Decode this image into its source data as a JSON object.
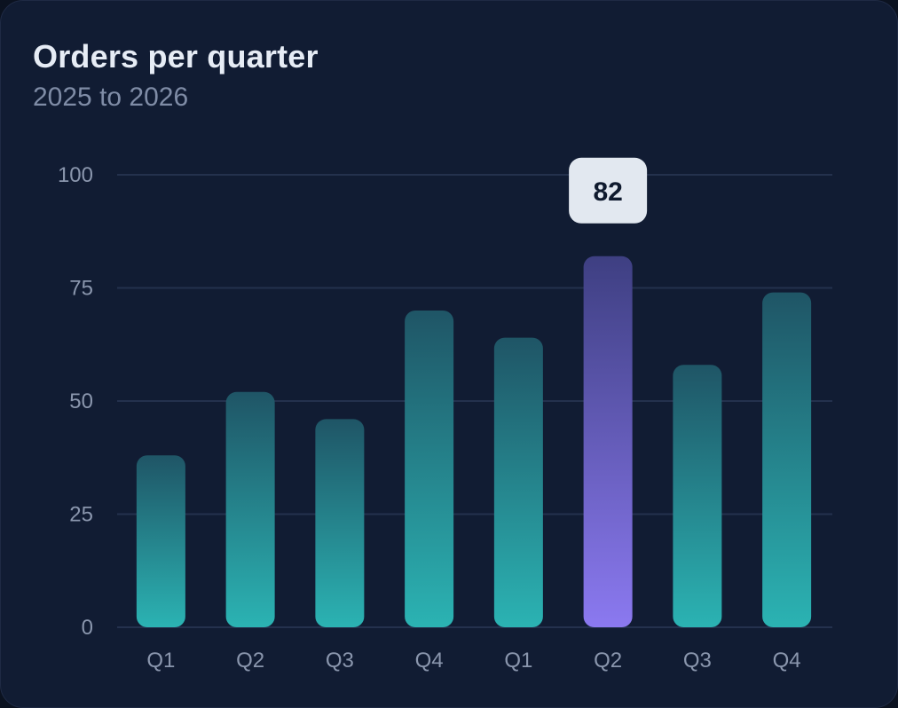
{
  "header": {
    "title": "Orders per quarter",
    "subtitle": "2025 to 2026"
  },
  "chart_data": {
    "type": "bar",
    "title": "Orders per quarter",
    "subtitle": "2025 to 2026",
    "categories": [
      "Q1",
      "Q2",
      "Q3",
      "Q4",
      "Q1",
      "Q2",
      "Q3",
      "Q4"
    ],
    "values": [
      38,
      52,
      46,
      70,
      64,
      82,
      58,
      74
    ],
    "ylim": [
      0,
      100
    ],
    "yticks": [
      "0",
      "25",
      "50",
      "75",
      "100"
    ],
    "grid": true,
    "highlight_index": 5,
    "highlight_label": "82",
    "colors": {
      "bar_top": "#1f5566",
      "bar_bottom": "#2bb3b3",
      "highlight_top": "#3e3f82",
      "highlight_bottom": "#8b79f0",
      "grid": "#24314d",
      "tooltip_bg": "#e2e8f0"
    }
  }
}
